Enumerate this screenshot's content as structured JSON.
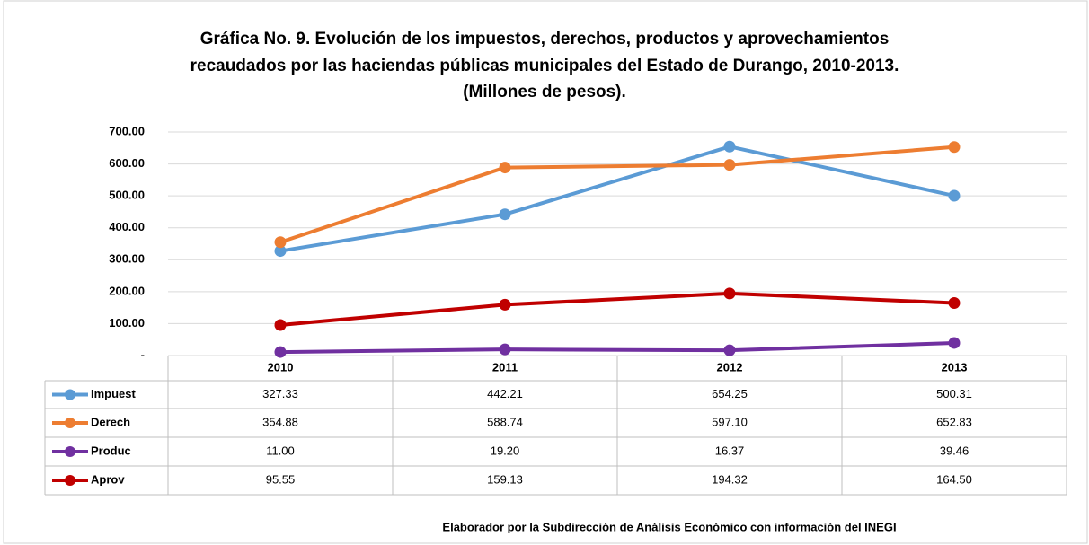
{
  "chart_data": {
    "type": "line",
    "title": [
      "Gráfica No. 9. Evolución de los impuestos, derechos, productos y aprovechamientos",
      "recaudados por las haciendas públicas municipales del Estado de Durango, 2010-2013.",
      "(Millones de pesos)."
    ],
    "categories": [
      "2010",
      "2011",
      "2012",
      "2013"
    ],
    "series": [
      {
        "name": "Impuest",
        "color": "#5b9bd5",
        "values": [
          327.33,
          442.21,
          654.25,
          500.31
        ],
        "value_labels": [
          "327.33",
          "442.21",
          "654.25",
          "500.31"
        ]
      },
      {
        "name": "Derech",
        "color": "#ed7d31",
        "values": [
          354.88,
          588.74,
          597.1,
          652.83
        ],
        "value_labels": [
          "354.88",
          "588.74",
          "597.10",
          "652.83"
        ]
      },
      {
        "name": "Produc",
        "color": "#7030a0",
        "values": [
          11,
          19.2,
          16.37,
          39.46
        ],
        "value_labels": [
          "11.00",
          "19.20",
          "16.37",
          "39.46"
        ]
      },
      {
        "name": "Aprov",
        "color": "#c00000",
        "values": [
          95.55,
          159.13,
          194.32,
          164.5
        ],
        "value_labels": [
          "95.55",
          "159.13",
          "194.32",
          "164.50"
        ]
      }
    ],
    "ylim": [
      0,
      700
    ],
    "yticks": [
      {
        "value": 0,
        "label": "-"
      },
      {
        "value": 100,
        "label": "100.00"
      },
      {
        "value": 200,
        "label": "200.00"
      },
      {
        "value": 300,
        "label": "300.00"
      },
      {
        "value": 400,
        "label": "400.00"
      },
      {
        "value": 500,
        "label": "500.00"
      },
      {
        "value": 600,
        "label": "600.00"
      },
      {
        "value": 700,
        "label": "700.00"
      }
    ],
    "grid": true,
    "source": "Elaborador por la Subdirección de Análisis Económico con información del INEGI"
  }
}
